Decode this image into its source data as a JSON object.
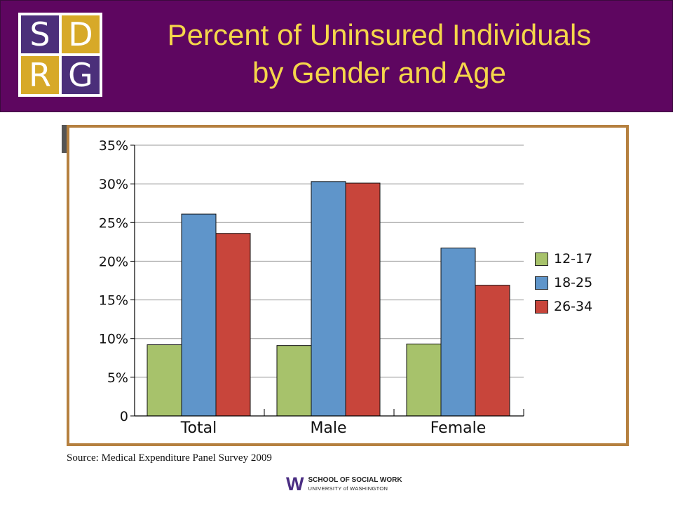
{
  "header": {
    "logo_letters": [
      "S",
      "D",
      "R",
      "G"
    ],
    "title_line1": "Percent of Uninsured Individuals",
    "title_line2": "by Gender and Age",
    "colors": {
      "background": "#5e0660",
      "title": "#f5d64a",
      "logo_purple": "#4b2f7a",
      "logo_gold": "#d7a928"
    }
  },
  "chart_data": {
    "type": "bar",
    "title": "",
    "xlabel": "",
    "ylabel": "",
    "categories": [
      "Total",
      "Male",
      "Female"
    ],
    "series": [
      {
        "name": "12-17",
        "values": [
          9.2,
          9.1,
          9.3
        ],
        "color": "#a7c26b"
      },
      {
        "name": "18-25",
        "values": [
          26.1,
          30.3,
          21.7
        ],
        "color": "#5f95ca"
      },
      {
        "name": "26-34",
        "values": [
          23.6,
          30.1,
          16.9
        ],
        "color": "#c8453b"
      }
    ],
    "yticks": [
      "0",
      "5%",
      "10%",
      "15%",
      "20%",
      "25%",
      "30%",
      "35%"
    ],
    "ylim": [
      0,
      35
    ],
    "grid": true,
    "legend_position": "right"
  },
  "source": "Source: Medical Expenditure Panel Survey 2009",
  "footer": {
    "logo_mark": "W",
    "line1": "SCHOOL OF SOCIAL WORK",
    "line2": "UNIVERSITY of WASHINGTON"
  }
}
